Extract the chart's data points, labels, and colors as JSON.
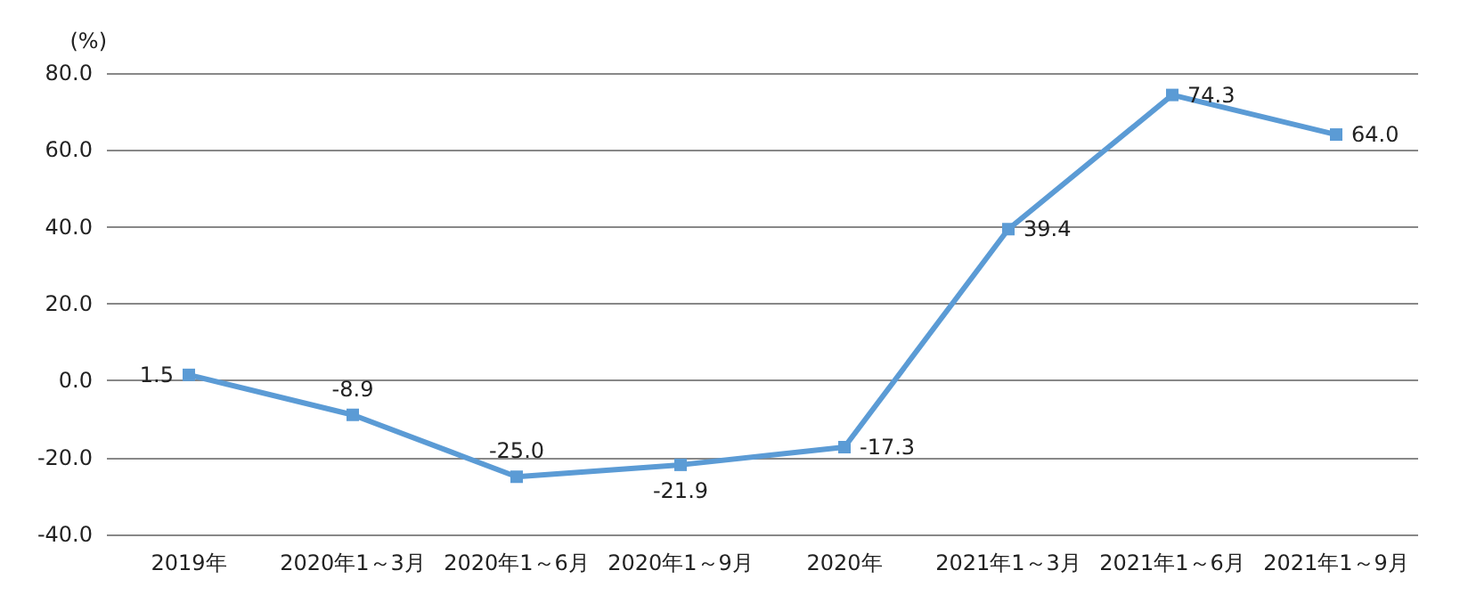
{
  "chart_data": {
    "type": "line",
    "ylabel": "(%)",
    "categories": [
      "2019年",
      "2020年1～3月",
      "2020年1～6月",
      "2020年1～9月",
      "2020年",
      "2021年1～3月",
      "2021年1～6月",
      "2021年1～9月"
    ],
    "series": [
      {
        "color": "#5b9bd5",
        "values": [
          1.5,
          -8.9,
          -25.0,
          -21.9,
          -17.3,
          39.4,
          74.3,
          64.0
        ],
        "value_labels": [
          "1.5",
          "-8.9",
          "-25.0",
          "-21.9",
          "-17.3",
          "39.4",
          "74.3",
          "64.0"
        ]
      }
    ],
    "ylim": [
      -40,
      80
    ],
    "yticks": [
      {
        "value": -40,
        "label": "-40.0"
      },
      {
        "value": -20,
        "label": "-20.0"
      },
      {
        "value": 0,
        "label": "0.0"
      },
      {
        "value": 20,
        "label": "20.0"
      },
      {
        "value": 40,
        "label": "40.0"
      },
      {
        "value": 60,
        "label": "60.0"
      },
      {
        "value": 80,
        "label": "80.0"
      }
    ],
    "grid": "y",
    "marker": "square",
    "line_style": "solid"
  }
}
